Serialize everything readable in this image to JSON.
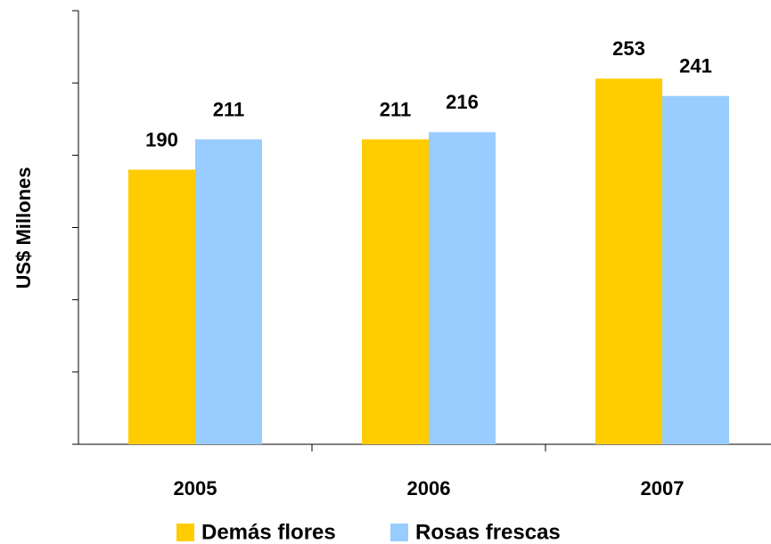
{
  "chart_data": {
    "type": "bar",
    "y_label": "US$ Millones",
    "categories": [
      "2005",
      "2006",
      "2007"
    ],
    "series": [
      {
        "name": "Demás flores",
        "color": "#ffcc00",
        "values": [
          190,
          211,
          253
        ]
      },
      {
        "name": "Rosas frescas",
        "color": "#99ccff",
        "values": [
          211,
          216,
          241
        ]
      }
    ],
    "ylim": [
      0,
      300
    ],
    "yticks": [
      0,
      50,
      100,
      150,
      200,
      250,
      300
    ],
    "grid": false,
    "legend": "bottom"
  }
}
